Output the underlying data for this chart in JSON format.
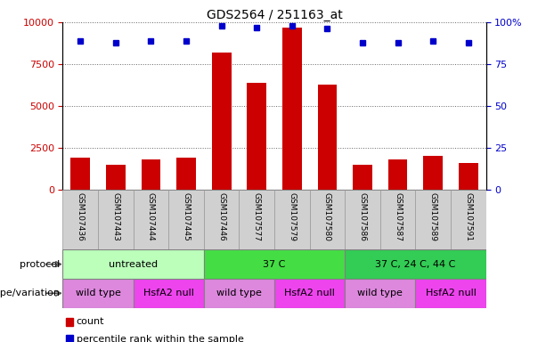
{
  "title": "GDS2564 / 251163_at",
  "samples": [
    "GSM107436",
    "GSM107443",
    "GSM107444",
    "GSM107445",
    "GSM107446",
    "GSM107577",
    "GSM107579",
    "GSM107580",
    "GSM107586",
    "GSM107587",
    "GSM107589",
    "GSM107591"
  ],
  "counts": [
    1900,
    1500,
    1800,
    1900,
    8200,
    6400,
    9700,
    6300,
    1500,
    1800,
    2000,
    1600
  ],
  "percentiles": [
    89,
    88,
    89,
    89,
    98,
    97,
    98,
    96,
    88,
    88,
    89,
    88
  ],
  "bar_color": "#cc0000",
  "dot_color": "#0000cc",
  "ylim_left": [
    0,
    10000
  ],
  "ylim_right": [
    0,
    100
  ],
  "yticks_left": [
    0,
    2500,
    5000,
    7500,
    10000
  ],
  "yticks_right": [
    0,
    25,
    50,
    75,
    100
  ],
  "protocol_groups": [
    {
      "label": "untreated",
      "start": 0,
      "end": 4,
      "color": "#bbffbb"
    },
    {
      "label": "37 C",
      "start": 4,
      "end": 8,
      "color": "#44dd44"
    },
    {
      "label": "37 C, 24 C, 44 C",
      "start": 8,
      "end": 12,
      "color": "#33cc55"
    }
  ],
  "genotype_groups": [
    {
      "label": "wild type",
      "start": 0,
      "end": 2,
      "color": "#dd88dd"
    },
    {
      "label": "HsfA2 null",
      "start": 2,
      "end": 4,
      "color": "#ee44ee"
    },
    {
      "label": "wild type",
      "start": 4,
      "end": 6,
      "color": "#dd88dd"
    },
    {
      "label": "HsfA2 null",
      "start": 6,
      "end": 8,
      "color": "#ee44ee"
    },
    {
      "label": "wild type",
      "start": 8,
      "end": 10,
      "color": "#dd88dd"
    },
    {
      "label": "HsfA2 null",
      "start": 10,
      "end": 12,
      "color": "#ee44ee"
    }
  ],
  "protocol_label": "protocol",
  "genotype_label": "genotype/variation",
  "legend_count": "count",
  "legend_percentile": "percentile rank within the sample",
  "grid_color": "#666666",
  "bg_color": "#ffffff",
  "tick_label_color_left": "#cc0000",
  "tick_label_color_right": "#0000cc",
  "sample_bg_color": "#d0d0d0",
  "sample_border_color": "#999999"
}
